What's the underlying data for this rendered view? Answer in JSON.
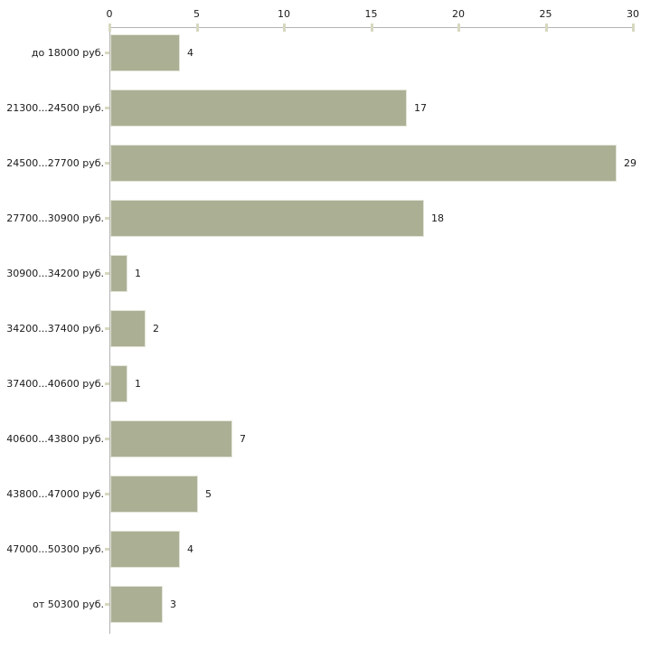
{
  "chart_data": {
    "type": "bar",
    "orientation": "horizontal",
    "title": "",
    "xlabel": "",
    "ylabel": "",
    "categories": [
      "до 18000 руб.",
      "21300...24500 руб.",
      "24500...27700 руб.",
      "27700...30900 руб.",
      "30900...34200 руб.",
      "34200...37400 руб.",
      "37400...40600 руб.",
      "40600...43800 руб.",
      "43800...47000 руб.",
      "47000...50300 руб.",
      "от 50300 руб."
    ],
    "values": [
      4,
      17,
      29,
      18,
      1,
      2,
      1,
      7,
      5,
      4,
      3
    ],
    "x_ticks": [
      0,
      5,
      10,
      15,
      20,
      25,
      30
    ],
    "xlim": [
      0,
      30
    ],
    "grid": false,
    "legend": false,
    "value_labels_shown": true,
    "colors": {
      "bar_fill": "#abb095",
      "bar_border": "#e3e3d8",
      "axis_line": "#b3b3b3",
      "tick_mark": "#d8d8c0",
      "text": "#1a1a1a",
      "background": "#ffffff"
    }
  }
}
